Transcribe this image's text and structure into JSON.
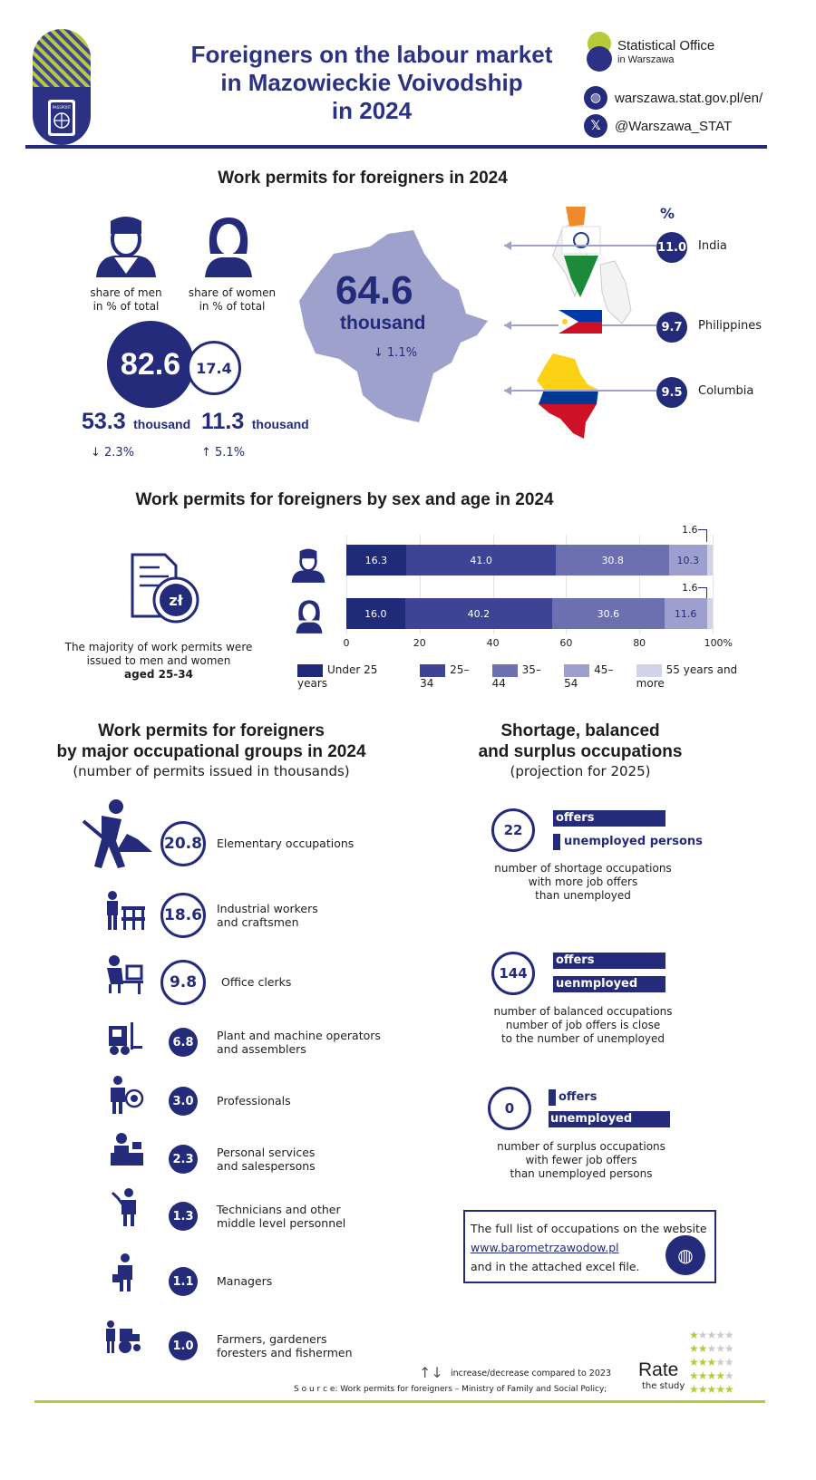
{
  "header": {
    "title_lines": [
      "Foreigners on the labour market",
      "in Mazowieckie Voivodship",
      "in 2024"
    ],
    "brand_name": "Statistical Office",
    "brand_sub": "in Warszawa",
    "website": "warszawa.stat.gov.pl/en/",
    "social": "@Warszawa_STAT",
    "passport_label": "PASSPORT"
  },
  "permits": {
    "heading": "Work permits for foreigners in 2024",
    "men_label": "share of men\nin % of total",
    "women_label": "share of women\nin % of total",
    "men_share": "82.6",
    "women_share": "17.4",
    "men_count": "53.3",
    "women_count": "11.3",
    "unit": "thousand",
    "men_change": "↓ 2.3%",
    "women_change": "↑ 5.1%",
    "total": "64.6",
    "total_unit": "thousand",
    "total_change": "↓ 1.1%",
    "pct_symbol": "%",
    "countries": [
      {
        "value": "11.0",
        "name": "India"
      },
      {
        "value": "9.7",
        "name": "Philippines"
      },
      {
        "value": "9.5",
        "name": "Columbia"
      }
    ]
  },
  "age": {
    "heading": "Work permits for foreigners by sex and age in 2024",
    "note_line1": "The majority of work permits were",
    "note_line2": "issued to men and women",
    "note_bold": "aged 25-34",
    "men_small_label": "1.6",
    "women_small_label": "1.6",
    "x_ticks": [
      "0",
      "20",
      "40",
      "60",
      "80",
      "100%"
    ]
  },
  "chart_data": {
    "type": "bar",
    "orientation": "horizontal",
    "stacked": true,
    "categories": [
      "men",
      "women"
    ],
    "series": [
      {
        "name": "Under 25 years",
        "values": [
          16.3,
          16.0
        ],
        "color": "#1f2a78"
      },
      {
        "name": "25–34",
        "values": [
          41.0,
          40.2
        ],
        "color": "#3d4495"
      },
      {
        "name": "35–44",
        "values": [
          30.8,
          30.6
        ],
        "color": "#6c6fb0"
      },
      {
        "name": "45–54",
        "values": [
          10.3,
          11.6
        ],
        "color": "#9d9fcf"
      },
      {
        "name": "55 years and more",
        "values": [
          1.6,
          1.6
        ],
        "color": "#d2d3ea"
      }
    ],
    "xlim": [
      0,
      100
    ],
    "legend": "bottom"
  },
  "occupations": {
    "heading_line1": "Work permits for foreigners",
    "heading_line2": "by major occupational groups in 2024",
    "subheading": "(number of permits issued in thousands)",
    "items": [
      {
        "value": "20.8",
        "label": "Elementary occupations"
      },
      {
        "value": "18.6",
        "label": "Industrial workers\nand craftsmen"
      },
      {
        "value": "9.8",
        "label": "Office clerks"
      },
      {
        "value": "6.8",
        "label": "Plant and machine operators\nand assemblers"
      },
      {
        "value": "3.0",
        "label": "Professionals"
      },
      {
        "value": "2.3",
        "label": "Personal services\nand salespersons"
      },
      {
        "value": "1.3",
        "label": "Technicians and other\nmiddle level personnel"
      },
      {
        "value": "1.1",
        "label": "Managers"
      },
      {
        "value": "1.0",
        "label": "Farmers, gardeners\nforesters and fishermen"
      }
    ]
  },
  "shortage": {
    "heading_line1": "Shortage, balanced",
    "heading_line2": "and surplus occupations",
    "subheading": "(projection for 2025)",
    "offers_label": "offers",
    "unemployed_label": "unemployed persons",
    "unemployed_label_alt": "uenmployed persons",
    "groups": [
      {
        "value": "22",
        "desc": "number of shortage occupations\nwith more job offers\nthan unemployed"
      },
      {
        "value": "144",
        "desc": "number of balanced occupations\nnumber of job offers is close\nto the number of unemployed"
      },
      {
        "value": "0",
        "desc": "number of surplus occupations\nwith fewer job offers\nthan unemployed persons"
      }
    ],
    "box_line1": "The full list of occupations on the website",
    "box_link": "www.barometrzawodow.pl",
    "box_line2": "and in the attached excel file."
  },
  "footer": {
    "change_note": "increase/decrease compared to 2023",
    "source": "S o u r c e: Work permits for foreigners – Ministry of Family and Social Policy;",
    "rate": "Rate",
    "rate_sub": "the study"
  }
}
